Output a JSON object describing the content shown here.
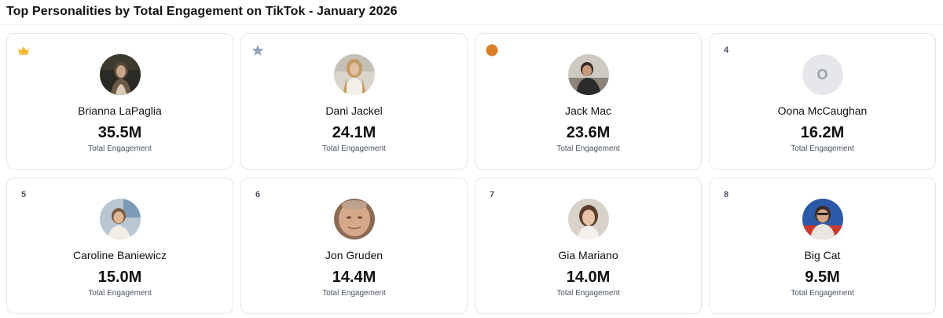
{
  "title": "Top Personalities by Total Engagement on TikTok - January 2026",
  "colors": {
    "crown": "#f5b82e",
    "star": "#94a3b8",
    "bronze": "#d97f2a",
    "card_border": "#e5e7eb"
  },
  "cards": [
    {
      "rank_badge": "crown-icon",
      "name": "Brianna LaPaglia",
      "value": "35.5M",
      "label": "Total Engagement",
      "avatar": "photo"
    },
    {
      "rank_badge": "star-icon",
      "name": "Dani Jackel",
      "value": "24.1M",
      "label": "Total Engagement",
      "avatar": "photo"
    },
    {
      "rank_badge": "bronze-medal-icon",
      "name": "Jack Mac",
      "value": "23.6M",
      "label": "Total Engagement",
      "avatar": "photo"
    },
    {
      "rank": "4",
      "name": "Oona McCaughan",
      "value": "16.2M",
      "label": "Total Engagement",
      "avatar_initial": "O"
    },
    {
      "rank": "5",
      "name": "Caroline Baniewicz",
      "value": "15.0M",
      "label": "Total Engagement",
      "avatar": "photo"
    },
    {
      "rank": "6",
      "name": "Jon Gruden",
      "value": "14.4M",
      "label": "Total Engagement",
      "avatar": "photo"
    },
    {
      "rank": "7",
      "name": "Gia Mariano",
      "value": "14.0M",
      "label": "Total Engagement",
      "avatar": "photo"
    },
    {
      "rank": "8",
      "name": "Big Cat",
      "value": "9.5M",
      "label": "Total Engagement",
      "avatar": "photo"
    }
  ]
}
